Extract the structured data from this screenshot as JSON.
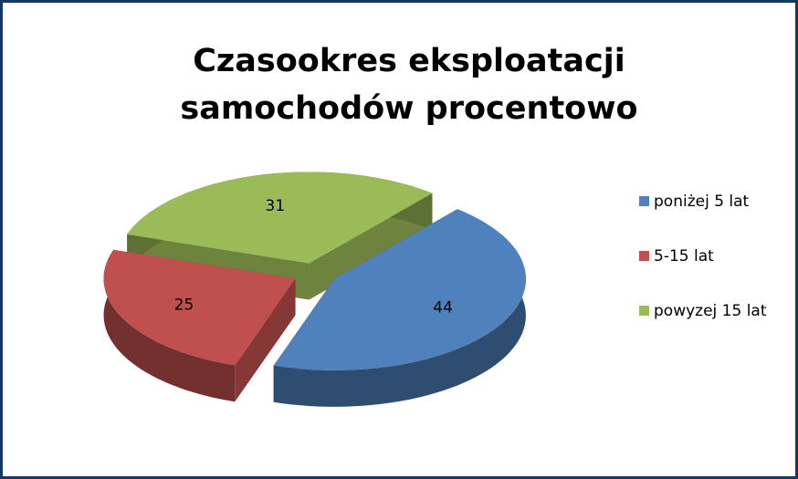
{
  "chart_data": {
    "type": "pie3d",
    "title": "Czasookres eksploatacji samochodów procentowo",
    "categories": [
      "poniżej 5 lat",
      "5-15 lat",
      "powyzej 15 lat"
    ],
    "series": [
      {
        "values": [
          44,
          25,
          31
        ],
        "colors": [
          "#4f81bd",
          "#c0504d",
          "#9bbb59"
        ]
      }
    ],
    "legend": "right"
  }
}
